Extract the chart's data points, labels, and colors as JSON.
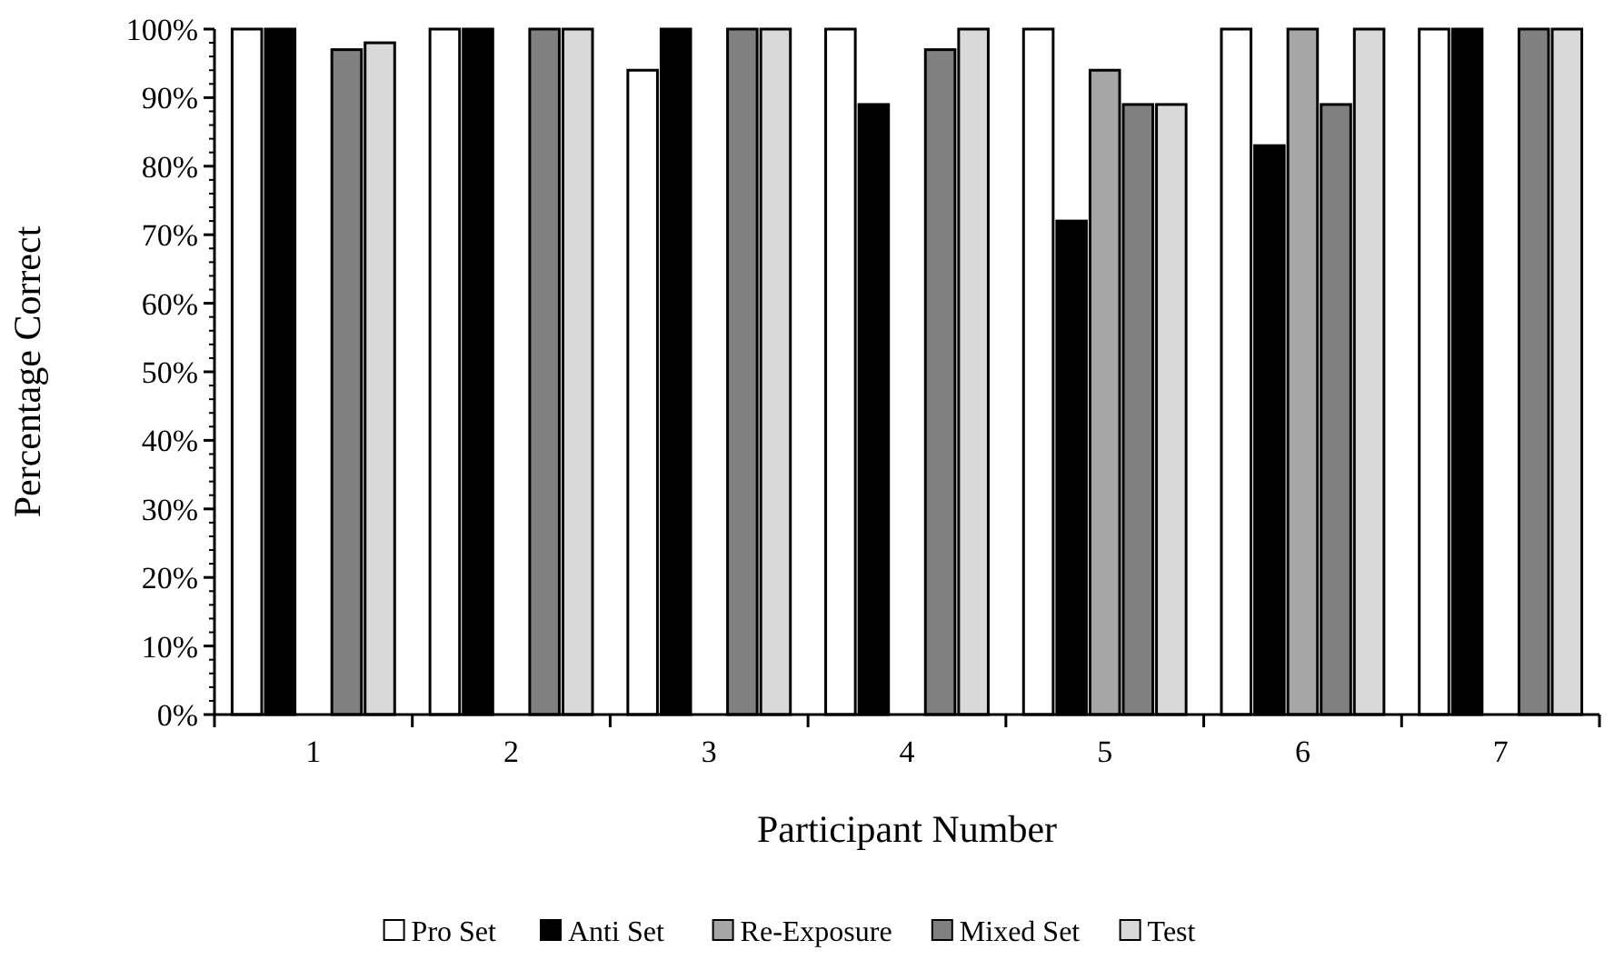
{
  "chart_data": {
    "type": "bar",
    "xlabel": "Participant Number",
    "ylabel": "Percentage Correct",
    "categories": [
      "1",
      "2",
      "3",
      "4",
      "5",
      "6",
      "7"
    ],
    "series": [
      {
        "name": "Pro Set",
        "color": "#ffffff",
        "values": [
          100,
          100,
          94,
          100,
          100,
          100,
          100
        ]
      },
      {
        "name": "Anti Set",
        "color": "#000000",
        "values": [
          100,
          100,
          100,
          89,
          72,
          83,
          100
        ]
      },
      {
        "name": "Re-Exposure",
        "color": "#a6a6a6",
        "values": [
          null,
          null,
          null,
          null,
          94,
          100,
          null
        ]
      },
      {
        "name": "Mixed Set",
        "color": "#808080",
        "values": [
          97,
          100,
          100,
          97,
          89,
          89,
          100
        ]
      },
      {
        "name": "Test",
        "color": "#d9d9d9",
        "values": [
          98,
          100,
          100,
          100,
          89,
          100,
          100
        ]
      }
    ],
    "ylim": [
      0,
      100
    ],
    "yticks": [
      {
        "value": 0,
        "label": "0%"
      },
      {
        "value": 10,
        "label": "10%"
      },
      {
        "value": 20,
        "label": "20%"
      },
      {
        "value": 30,
        "label": "30%"
      },
      {
        "value": 40,
        "label": "40%"
      },
      {
        "value": 50,
        "label": "50%"
      },
      {
        "value": 60,
        "label": "60%"
      },
      {
        "value": 70,
        "label": "70%"
      },
      {
        "value": 80,
        "label": "80%"
      },
      {
        "value": 90,
        "label": "90%"
      },
      {
        "value": 100,
        "label": "100%"
      }
    ],
    "legend": "bottom"
  }
}
